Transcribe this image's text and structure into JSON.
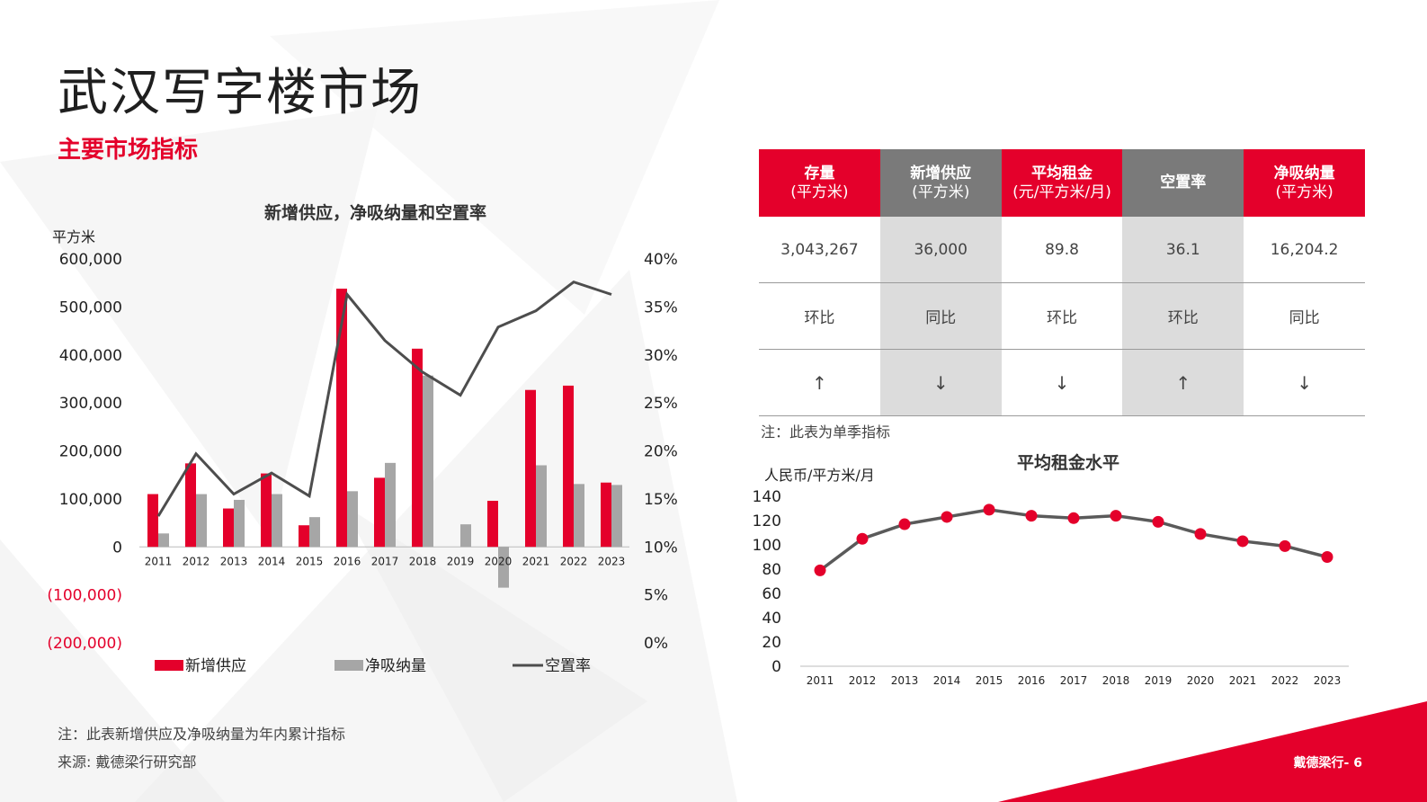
{
  "page": {
    "title": "武汉写字楼市场",
    "subtitle": "主要市场指标",
    "note_left": "注：此表新增供应及净吸纳量为年内累计指标",
    "source": "来源: 戴德梁行研究部",
    "note_table": "注：此表为单季指标",
    "brand": "戴德梁行- 6"
  },
  "colors": {
    "accent": "#e4002b",
    "gray_bar": "#a6a6a6",
    "line_dark": "#4d4d4d",
    "header_gray": "#7a7a7a"
  },
  "table": {
    "columns": [
      {
        "label": "存量",
        "unit": "(平方米)",
        "value": "3,043,267",
        "compare": "环比",
        "trend": "↑",
        "style": "red"
      },
      {
        "label": "新增供应",
        "unit": "(平方米)",
        "value": "36,000",
        "compare": "同比",
        "trend": "↓",
        "style": "gray"
      },
      {
        "label": "平均租金",
        "unit": "(元/平方米/月)",
        "value": "89.8",
        "compare": "环比",
        "trend": "↓",
        "style": "red"
      },
      {
        "label": "空置率",
        "unit": "",
        "value": "36.1",
        "compare": "环比",
        "trend": "↑",
        "style": "gray"
      },
      {
        "label": "净吸纳量",
        "unit": "(平方米)",
        "value": "16,204.2",
        "compare": "同比",
        "trend": "↓",
        "style": "red"
      }
    ]
  },
  "chart_data": [
    {
      "type": "bar",
      "title": "新增供应，净吸纳量和空置率",
      "ylabel": "平方米",
      "categories": [
        "2011",
        "2012",
        "2013",
        "2014",
        "2015",
        "2016",
        "2017",
        "2018",
        "2019",
        "2020",
        "2021",
        "2022",
        "2023"
      ],
      "ylim": [
        -200000,
        600000
      ],
      "y_ticks": [
        "600,000",
        "500,000",
        "400,000",
        "300,000",
        "200,000",
        "100,000",
        "0",
        "(100,000)",
        "(200,000)"
      ],
      "y2lim": [
        0,
        40
      ],
      "y2_ticks": [
        "40%",
        "35%",
        "30%",
        "25%",
        "20%",
        "15%",
        "10%",
        "5%",
        "0%"
      ],
      "series": [
        {
          "name": "新增供应",
          "type": "bar",
          "color": "#e4002b",
          "values": [
            110000,
            174000,
            80000,
            153000,
            45000,
            538000,
            144000,
            413000,
            0,
            96000,
            327000,
            336000,
            134000
          ]
        },
        {
          "name": "净吸纳量",
          "type": "bar",
          "color": "#a6a6a6",
          "values": [
            28000,
            110000,
            98000,
            110000,
            62000,
            116000,
            175000,
            357000,
            47000,
            -85000,
            170000,
            131000,
            129000
          ]
        },
        {
          "name": "空置率",
          "type": "line",
          "axis": "y2",
          "color": "#4d4d4d",
          "values": [
            13.2,
            19.7,
            15.5,
            17.7,
            15.3,
            36.3,
            31.5,
            28.2,
            25.8,
            32.9,
            34.6,
            37.6,
            36.3
          ]
        }
      ],
      "legend": "bottom"
    },
    {
      "type": "line",
      "title": "平均租金水平",
      "ylabel": "人民币/平方米/月",
      "categories": [
        "2011",
        "2012",
        "2013",
        "2014",
        "2015",
        "2016",
        "2017",
        "2018",
        "2019",
        "2020",
        "2021",
        "2022",
        "2023"
      ],
      "ylim": [
        0,
        140
      ],
      "y_ticks": [
        "140",
        "120",
        "100",
        "80",
        "60",
        "40",
        "20",
        "0"
      ],
      "series": [
        {
          "name": "",
          "values": [
            79,
            105,
            117,
            123,
            129,
            124,
            122,
            124,
            119,
            109,
            103,
            99,
            90
          ],
          "color": "#e4002b"
        }
      ]
    }
  ]
}
